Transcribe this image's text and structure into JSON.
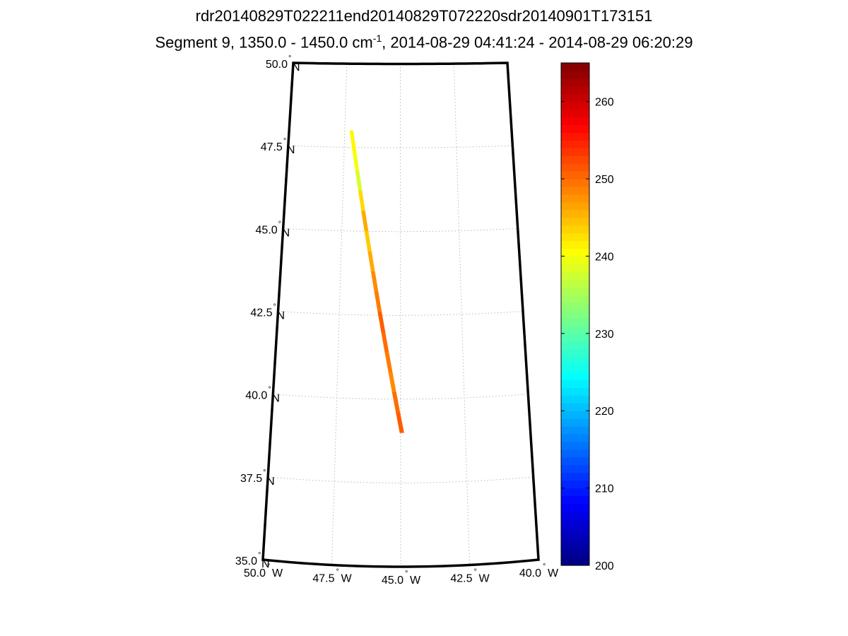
{
  "title": {
    "line1": "rdr20140829T022211end20140829T072220sdr20140901T173151",
    "line2_prefix": "Segment 9, 1350.0 - 1450.0 cm",
    "line2_sup": "-1",
    "line2_suffix": ", 2014-08-29 04:41:24 - 2014-08-29 06:20:29"
  },
  "map": {
    "lat_range": [
      35.0,
      50.0
    ],
    "lon_range": [
      -50.0,
      -40.0
    ],
    "lat_labels": [
      {
        "value": 50.0,
        "text": "50.0",
        "hemi": "N"
      },
      {
        "value": 47.5,
        "text": "47.5",
        "hemi": "N"
      },
      {
        "value": 45.0,
        "text": "45.0",
        "hemi": "N"
      },
      {
        "value": 42.5,
        "text": "42.5",
        "hemi": "N"
      },
      {
        "value": 40.0,
        "text": "40.0",
        "hemi": "N"
      },
      {
        "value": 37.5,
        "text": "37.5",
        "hemi": "N"
      },
      {
        "value": 35.0,
        "text": "35.0",
        "hemi": "N"
      }
    ],
    "lon_labels": [
      {
        "value": -50.0,
        "text": "50.0",
        "hemi": "W"
      },
      {
        "value": -47.5,
        "text": "47.5",
        "hemi": "W"
      },
      {
        "value": -45.0,
        "text": "45.0",
        "hemi": "W"
      },
      {
        "value": -42.5,
        "text": "42.5",
        "hemi": "W"
      },
      {
        "value": -40.0,
        "text": "40.0",
        "hemi": "W"
      }
    ],
    "swath": [
      {
        "lat": 48.0,
        "lon": -47.2,
        "value": 241
      },
      {
        "lat": 47.4,
        "lon": -47.05,
        "value": 240
      },
      {
        "lat": 46.8,
        "lon": -46.9,
        "value": 238
      },
      {
        "lat": 46.2,
        "lon": -46.75,
        "value": 243
      },
      {
        "lat": 45.6,
        "lon": -46.6,
        "value": 246
      },
      {
        "lat": 45.0,
        "lon": -46.45,
        "value": 244
      },
      {
        "lat": 44.4,
        "lon": -46.3,
        "value": 246
      },
      {
        "lat": 43.8,
        "lon": -46.15,
        "value": 248
      },
      {
        "lat": 43.2,
        "lon": -46.0,
        "value": 249
      },
      {
        "lat": 42.6,
        "lon": -45.85,
        "value": 251
      },
      {
        "lat": 42.0,
        "lon": -45.7,
        "value": 250
      },
      {
        "lat": 41.4,
        "lon": -45.55,
        "value": 249
      },
      {
        "lat": 40.8,
        "lon": -45.4,
        "value": 248
      },
      {
        "lat": 40.2,
        "lon": -45.25,
        "value": 250
      },
      {
        "lat": 39.6,
        "lon": -45.1,
        "value": 251
      },
      {
        "lat": 39.0,
        "lon": -44.95,
        "value": 251
      }
    ]
  },
  "colorbar": {
    "min": 200,
    "max": 265,
    "ticks": [
      "200",
      "210",
      "220",
      "230",
      "240",
      "250",
      "260"
    ]
  }
}
